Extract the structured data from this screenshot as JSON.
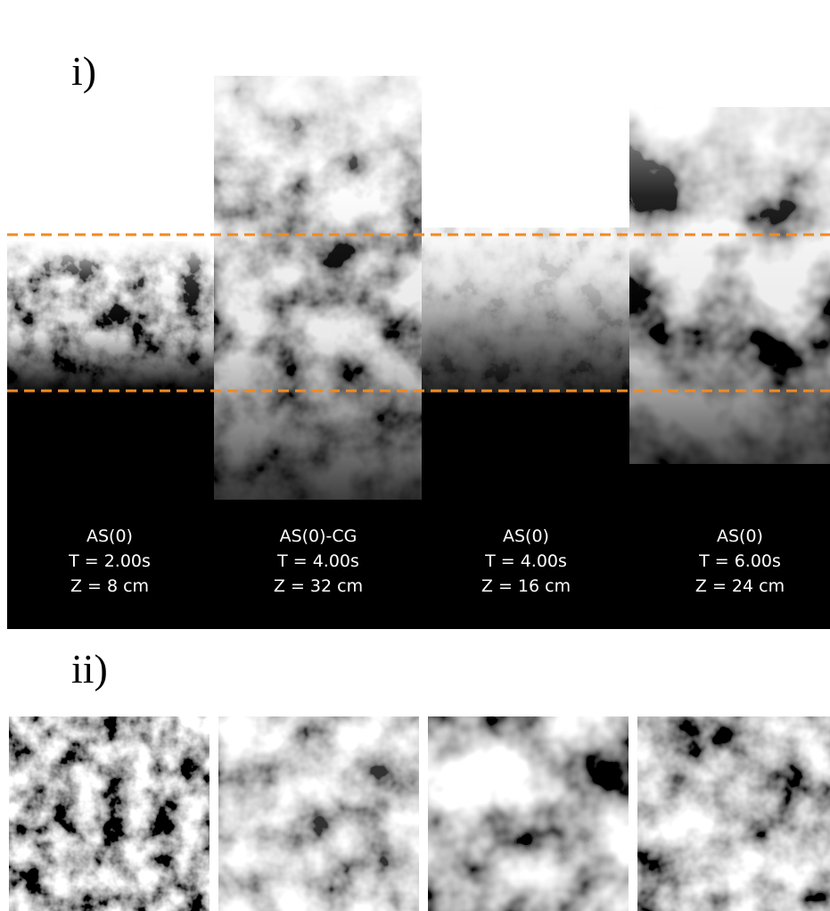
{
  "panel_i": {
    "label": "i)",
    "columns": [
      {
        "lines": [
          "AS(0)",
          "T = 2.00s",
          "Z = 8 cm"
        ]
      },
      {
        "lines": [
          "AS(0)-CG",
          "T = 4.00s",
          "Z = 32 cm"
        ]
      },
      {
        "lines": [
          "AS(0)",
          "T = 4.00s",
          "Z = 16 cm"
        ]
      },
      {
        "lines": [
          "AS(0)",
          "T = 6.00s",
          "Z = 24 cm"
        ]
      }
    ]
  },
  "panel_ii": {
    "label": "ii)"
  }
}
